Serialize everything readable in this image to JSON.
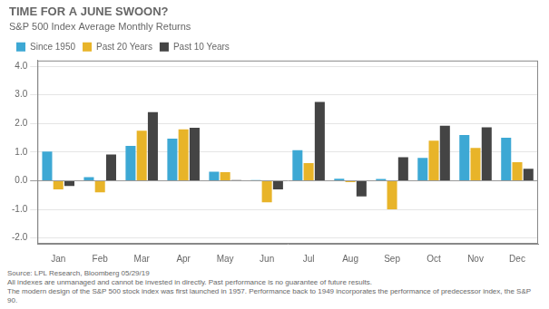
{
  "chart_data": {
    "type": "bar",
    "title": "TIME FOR A JUNE SWOON?",
    "subtitle": "S&P 500 Index Average Monthly Returns",
    "categories": [
      "Jan",
      "Feb",
      "Mar",
      "Apr",
      "May",
      "Jun",
      "Jul",
      "Aug",
      "Sep",
      "Oct",
      "Nov",
      "Dec"
    ],
    "series": [
      {
        "name": "Since 1950",
        "color": "#3da8d4",
        "values": [
          1.02,
          0.13,
          1.22,
          1.47,
          0.32,
          0.02,
          1.07,
          0.07,
          0.06,
          0.8,
          1.6,
          1.5
        ]
      },
      {
        "name": "Past 20 Years",
        "color": "#e8b429",
        "values": [
          -0.3,
          -0.4,
          1.75,
          1.8,
          0.3,
          -0.75,
          0.62,
          -0.05,
          -1.0,
          1.4,
          1.15,
          0.65
        ]
      },
      {
        "name": "Past 10 Years",
        "color": "#444444",
        "values": [
          -0.18,
          0.92,
          2.4,
          1.85,
          0.02,
          -0.3,
          2.75,
          -0.55,
          0.82,
          1.92,
          1.87,
          0.42
        ]
      }
    ],
    "ylim": [
      -2.2,
      4.2
    ],
    "yticks": [
      {
        "value": -2.0,
        "label": "-2.0"
      },
      {
        "value": -1.0,
        "label": "-1.0"
      },
      {
        "value": 0.0,
        "label": "0.0"
      },
      {
        "value": 1.0,
        "label": "1.0"
      },
      {
        "value": 2.0,
        "label": "2.0"
      },
      {
        "value": 3.0,
        "label": "3.0"
      },
      {
        "value": 4.0,
        "label": "4.0"
      }
    ],
    "grid": true,
    "legend": "top",
    "annotations": [
      "Source: LPL Research, Bloomberg 05/29/19",
      "All indexes are unmanaged and cannot be invested in directly. Past performance is no guarantee of future results.",
      "The modern design of the S&P 500 stock index was first launched in 1957. Performance back to 1949 incorporates the performance of predecessor index, the S&P 90."
    ]
  }
}
